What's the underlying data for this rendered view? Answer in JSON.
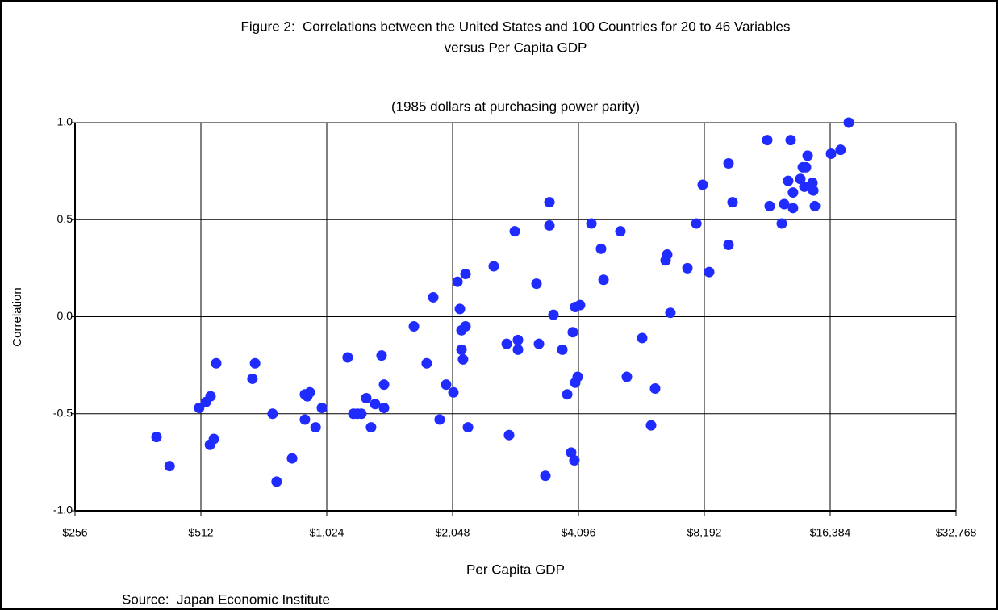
{
  "chart_data": {
    "type": "scatter",
    "title": [
      "Figure 2:  Correlations between the United States and 100 Countries for 20 to 46 Variables",
      "versus Per Capita GDP"
    ],
    "subtitle": "(1985 dollars at purchasing power parity)",
    "x_label": "Per Capita GDP",
    "y_label": "Correlation",
    "source": "Source:  Japan Economic Institute",
    "xscale": "log",
    "xlim": [
      256,
      32768
    ],
    "ylim": [
      -1,
      1
    ],
    "xticks": [
      {
        "value": 256,
        "label": "$256"
      },
      {
        "value": 512,
        "label": "$512"
      },
      {
        "value": 1024,
        "label": "$1,024"
      },
      {
        "value": 2048,
        "label": "$2,048"
      },
      {
        "value": 4096,
        "label": "$4,096"
      },
      {
        "value": 8192,
        "label": "$8,192"
      },
      {
        "value": 16384,
        "label": "$16,384"
      },
      {
        "value": 32768,
        "label": "$32,768"
      }
    ],
    "yticks": [
      {
        "value": 1,
        "label": "1.0"
      },
      0.5,
      {
        "value": 0,
        "label": "0.0"
      },
      -0.5,
      {
        "value": -1,
        "label": "-1.0"
      }
    ],
    "grid": true,
    "color": "#1f2bff",
    "x": [
      401,
      431,
      507,
      526,
      538,
      540,
      550,
      557,
      680,
      690,
      760,
      777,
      846,
      908,
      908,
      920,
      933,
      963,
      997,
      1149,
      1186,
      1212,
      1239,
      1273,
      1307,
      1337,
      1385,
      1404,
      1404,
      1655,
      1776,
      1841,
      1907,
      1976,
      2057,
      2104,
      2132,
      2151,
      2151,
      2169,
      2199,
      2199,
      2229,
      2569,
      2759,
      2795,
      2884,
      2935,
      2935,
      3251,
      3295,
      3414,
      3491,
      3491,
      3569,
      3748,
      3850,
      3935,
      3970,
      4005,
      4023,
      4023,
      4078,
      4132,
      4399,
      4638,
      4702,
      5160,
      5347,
      5818,
      6110,
      6247,
      6619,
      6677,
      6796,
      7463,
      7840,
      8119,
      8413,
      9360,
      9360,
      9570,
      11585,
      11740,
      12550,
      12720,
      13000,
      13180,
      13350,
      13350,
      13900,
      14090,
      14210,
      14340,
      14470,
      14860,
      14930,
      15060,
      16460,
      17350,
      18150
    ],
    "values": [
      -0.62,
      -0.77,
      -0.47,
      -0.44,
      -0.66,
      -0.41,
      -0.63,
      -0.24,
      -0.32,
      -0.24,
      -0.5,
      -0.85,
      -0.73,
      -0.53,
      -0.4,
      -0.41,
      -0.39,
      -0.57,
      -0.47,
      -0.21,
      -0.5,
      -0.5,
      -0.5,
      -0.42,
      -0.57,
      -0.45,
      -0.2,
      -0.47,
      -0.35,
      -0.05,
      -0.24,
      0.1,
      -0.53,
      -0.35,
      -0.39,
      0.18,
      0.04,
      -0.17,
      -0.07,
      -0.22,
      0.22,
      -0.05,
      -0.57,
      0.26,
      -0.14,
      -0.61,
      0.44,
      -0.12,
      -0.17,
      0.17,
      -0.14,
      -0.82,
      0.59,
      0.47,
      0.01,
      -0.17,
      -0.4,
      -0.7,
      -0.08,
      -0.74,
      -0.34,
      0.05,
      -0.31,
      0.06,
      0.48,
      0.35,
      0.19,
      0.44,
      -0.31,
      -0.11,
      -0.56,
      -0.37,
      0.29,
      0.32,
      0.02,
      0.25,
      0.48,
      0.68,
      0.23,
      0.37,
      0.79,
      0.59,
      0.91,
      0.57,
      0.48,
      0.58,
      0.7,
      0.91,
      0.64,
      0.56,
      0.71,
      0.77,
      0.67,
      0.77,
      0.83,
      0.69,
      0.65,
      0.57,
      0.84,
      0.86,
      1.0
    ]
  }
}
